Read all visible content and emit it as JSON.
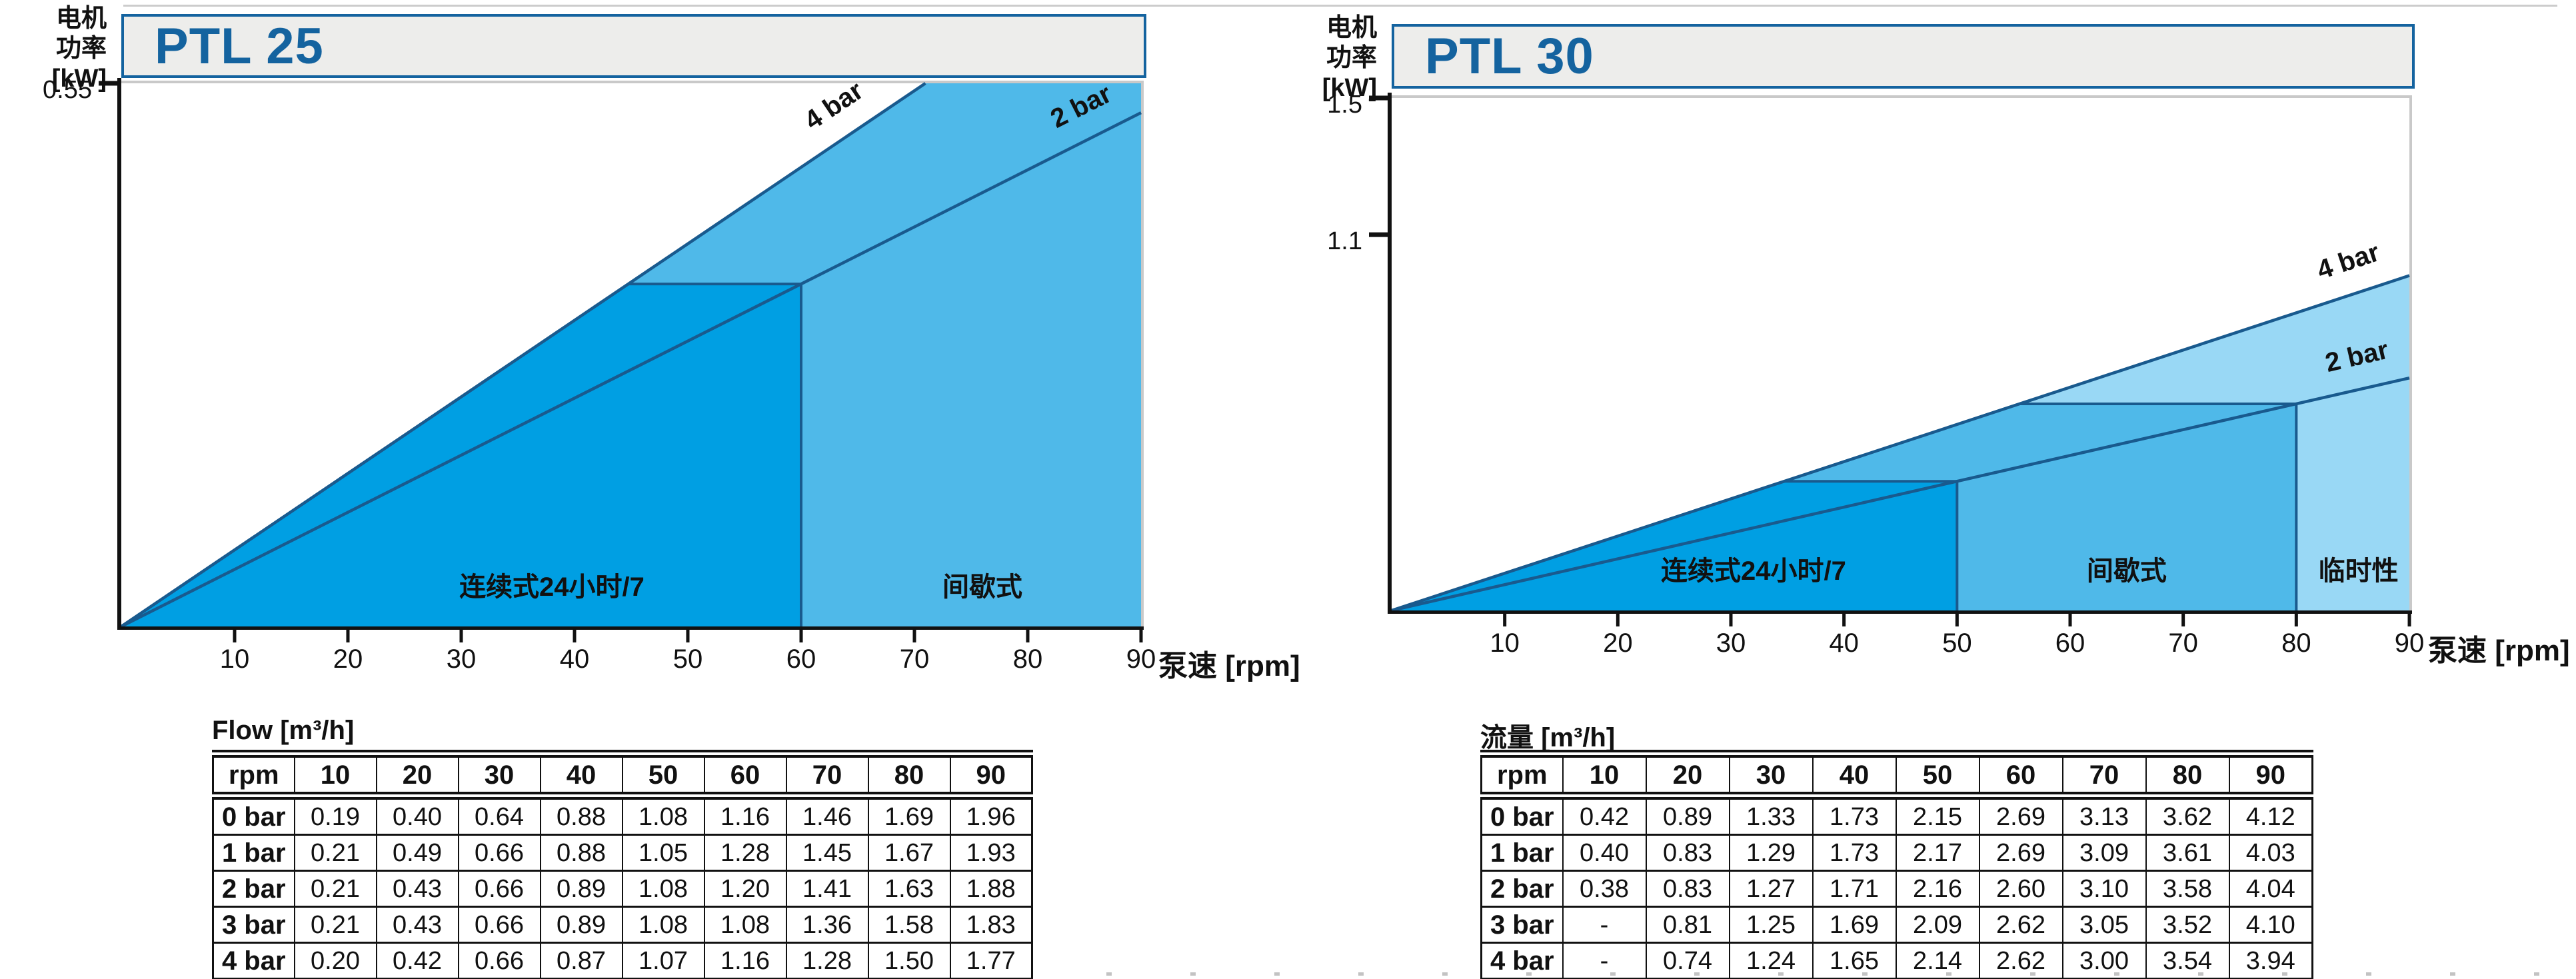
{
  "page": {
    "background": "#ffffff",
    "top_rule_color": "#cccccc",
    "bottom_dash_color": "#c3c3c3"
  },
  "colors": {
    "line_navy": "#195a8e",
    "title_blue": "#14639f",
    "title_box_bg": "#ededeb",
    "axis_black": "#111111",
    "plot_edge_gray": "#c9c9c9",
    "fills": {
      "dark": "#009fe3",
      "medium": "#4fb9e9",
      "light": "#99d8f5"
    }
  },
  "chart_data": [
    {
      "type": "area",
      "title": "PTL 25",
      "ylabel_lines": [
        "电机",
        "功率",
        "[kW]"
      ],
      "xlabel": "泵速 [rpm]",
      "xlim": [
        0,
        90
      ],
      "ylim": [
        0,
        0.55
      ],
      "x_ticks": [
        10,
        20,
        30,
        40,
        50,
        60,
        70,
        80,
        90
      ],
      "y_ticks": [
        {
          "value": 0.55,
          "label": "0.55"
        }
      ],
      "grid": false,
      "legend_position": "none",
      "pressure_lines": [
        {
          "label": "4 bar",
          "kw_per_rpm": 0.00775,
          "label_rpm": 64.5
        },
        {
          "label": "2 bar",
          "kw_per_rpm": 0.00578,
          "label_rpm": 86
        }
      ],
      "regions": [
        {
          "label": "连续式24小时/7",
          "rpm_from": 0,
          "rpm_to": 60,
          "capped_by": "2 bar",
          "fill": "dark",
          "label_rpm": 38
        },
        {
          "label": "间歇式",
          "rpm_from": 60,
          "rpm_to": 90,
          "capped_by": null,
          "fill": "medium",
          "label_rpm": 76
        }
      ]
    },
    {
      "type": "area",
      "title": "PTL 30",
      "ylabel_lines": [
        "电机",
        "功率",
        "[kW]"
      ],
      "xlabel": "泵速 [rpm]",
      "xlim": [
        0,
        90
      ],
      "ylim": [
        0,
        1.5
      ],
      "x_ticks": [
        10,
        20,
        30,
        40,
        50,
        60,
        70,
        80,
        90
      ],
      "y_ticks": [
        {
          "value": 1.5,
          "label": "1.5"
        },
        {
          "value": 1.1,
          "label": "1.1"
        }
      ],
      "grid": false,
      "legend_position": "none",
      "pressure_lines": [
        {
          "label": "4 bar",
          "kw_per_rpm": 0.01089,
          "label_rpm": 85.5
        },
        {
          "label": "2 bar",
          "kw_per_rpm": 0.00756,
          "label_rpm": 86
        }
      ],
      "regions": [
        {
          "label": "连续式24小时/7",
          "rpm_from": 0,
          "rpm_to": 50,
          "capped_by": "2 bar",
          "fill": "dark",
          "label_rpm": 32
        },
        {
          "label": "间歇式",
          "rpm_from": 50,
          "rpm_to": 80,
          "capped_by": "2 bar",
          "fill": "medium",
          "label_rpm": 65
        },
        {
          "label": "临时性",
          "rpm_from": 80,
          "rpm_to": 90,
          "capped_by": null,
          "fill": "light",
          "label_rpm": 85.5
        }
      ]
    }
  ],
  "tables": [
    {
      "title": "Flow [m³/h]",
      "header": [
        "rpm",
        "10",
        "20",
        "30",
        "40",
        "50",
        "60",
        "70",
        "80",
        "90"
      ],
      "rows": [
        {
          "label": "0 bar",
          "values": [
            "0.19",
            "0.40",
            "0.64",
            "0.88",
            "1.08",
            "1.16",
            "1.46",
            "1.69",
            "1.96"
          ]
        },
        {
          "label": "1 bar",
          "values": [
            "0.21",
            "0.49",
            "0.66",
            "0.88",
            "1.05",
            "1.28",
            "1.45",
            "1.67",
            "1.93"
          ]
        },
        {
          "label": "2 bar",
          "values": [
            "0.21",
            "0.43",
            "0.66",
            "0.89",
            "1.08",
            "1.20",
            "1.41",
            "1.63",
            "1.88"
          ]
        },
        {
          "label": "3 bar",
          "values": [
            "0.21",
            "0.43",
            "0.66",
            "0.89",
            "1.08",
            "1.08",
            "1.36",
            "1.58",
            "1.83"
          ]
        },
        {
          "label": "4 bar",
          "values": [
            "0.20",
            "0.42",
            "0.66",
            "0.87",
            "1.07",
            "1.16",
            "1.28",
            "1.50",
            "1.77"
          ]
        }
      ]
    },
    {
      "title": "流量 [m³/h]",
      "header": [
        "rpm",
        "10",
        "20",
        "30",
        "40",
        "50",
        "60",
        "70",
        "80",
        "90"
      ],
      "rows": [
        {
          "label": "0 bar",
          "values": [
            "0.42",
            "0.89",
            "1.33",
            "1.73",
            "2.15",
            "2.69",
            "3.13",
            "3.62",
            "4.12"
          ]
        },
        {
          "label": "1 bar",
          "values": [
            "0.40",
            "0.83",
            "1.29",
            "1.73",
            "2.17",
            "2.69",
            "3.09",
            "3.61",
            "4.03"
          ]
        },
        {
          "label": "2 bar",
          "values": [
            "0.38",
            "0.83",
            "1.27",
            "1.71",
            "2.16",
            "2.60",
            "3.10",
            "3.58",
            "4.04"
          ]
        },
        {
          "label": "3 bar",
          "values": [
            "-",
            "0.81",
            "1.25",
            "1.69",
            "2.09",
            "2.62",
            "3.05",
            "3.52",
            "4.10"
          ]
        },
        {
          "label": "4 bar",
          "values": [
            "-",
            "0.74",
            "1.24",
            "1.65",
            "2.14",
            "2.62",
            "3.00",
            "3.54",
            "3.94"
          ]
        }
      ]
    }
  ]
}
